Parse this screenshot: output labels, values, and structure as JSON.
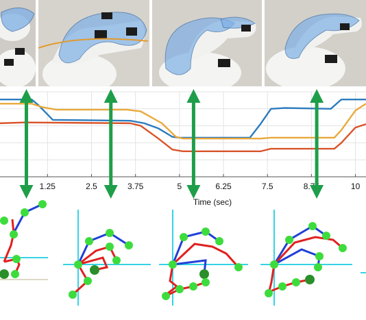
{
  "colors": {
    "series_blue": "#2b7bbf",
    "series_yellow": "#e8a93a",
    "series_red": "#d9542a",
    "arrow_green": "#1f9e4a",
    "axis_cyan": "#34d3e6",
    "joint_green": "#3ddc3d",
    "link_red": "#e02020",
    "link_blue": "#1f3fd6",
    "glove_blue": "#7fb0e6"
  },
  "chart_data": {
    "type": "line",
    "xlabel": "Time (sec)",
    "ylabel": "",
    "xlim": [
      -0.1,
      10.3
    ],
    "ylim": [
      0,
      1
    ],
    "x_ticks": [
      "1.25",
      "2.5",
      "3.75",
      "5",
      "6.25",
      "7.5",
      "8.75",
      "10"
    ],
    "x_tick_values": [
      1.25,
      2.5,
      3.75,
      5,
      6.25,
      7.5,
      8.75,
      10
    ],
    "grid": true,
    "series": [
      {
        "color": "#2b7bbf",
        "x": [
          -0.1,
          0.8,
          1.0,
          1.4,
          3.6,
          4.0,
          4.4,
          4.8,
          5.0,
          7.0,
          7.3,
          7.6,
          8.0,
          9.3,
          9.6,
          10.3
        ],
        "y": [
          0.91,
          0.91,
          0.84,
          0.67,
          0.66,
          0.63,
          0.57,
          0.47,
          0.46,
          0.46,
          0.62,
          0.8,
          0.81,
          0.8,
          0.91,
          0.91
        ]
      },
      {
        "color": "#e8a93a",
        "x": [
          -0.1,
          0.8,
          1.1,
          1.5,
          3.5,
          3.9,
          4.5,
          4.9,
          5.1,
          7.3,
          7.6,
          9.4,
          9.6,
          10.0,
          10.3
        ],
        "y": [
          0.86,
          0.86,
          0.82,
          0.79,
          0.79,
          0.77,
          0.63,
          0.47,
          0.45,
          0.45,
          0.46,
          0.46,
          0.55,
          0.78,
          0.86
        ]
      },
      {
        "color": "#d9542a",
        "x": [
          -0.1,
          0.6,
          3.6,
          3.9,
          4.4,
          4.8,
          5.1,
          7.3,
          7.6,
          9.4,
          9.6,
          10.0,
          10.3
        ],
        "y": [
          0.63,
          0.64,
          0.63,
          0.6,
          0.45,
          0.32,
          0.3,
          0.3,
          0.33,
          0.33,
          0.4,
          0.58,
          0.62
        ]
      }
    ],
    "marked_times": [
      0.65,
      3.05,
      5.4,
      8.9
    ]
  }
}
